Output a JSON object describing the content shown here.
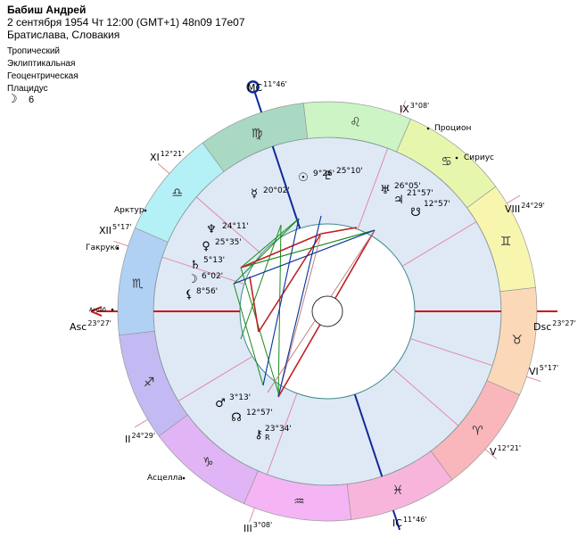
{
  "header": {
    "name": "Бабиш Андрей",
    "details": "2 сентября 1954  Чт  12:00 (GMT+1) 48n09  17e07",
    "place": "Братислава, Словакия"
  },
  "settings": {
    "lines": [
      "Тропический",
      "Эклиптикальная",
      "Геоцентрическая",
      "Плацидус"
    ],
    "moon": {
      "glyph": "☽",
      "value": 6
    }
  },
  "houses": [
    {
      "label": "Asc",
      "degree": "23°27'"
    },
    {
      "label": "II",
      "degree": "24°29'"
    },
    {
      "label": "III",
      "degree": "3°08'"
    },
    {
      "label": "IC",
      "degree": "11°46'"
    },
    {
      "label": "V",
      "degree": "12°21'"
    },
    {
      "label": "VI",
      "degree": "5°17'"
    },
    {
      "label": "Dsc",
      "degree": "23°27'"
    },
    {
      "label": "VIII",
      "degree": "24°29'"
    },
    {
      "label": "IX",
      "degree": "3°08'"
    },
    {
      "label": "MC",
      "degree": "11°46'"
    },
    {
      "label": "XI",
      "degree": "12°21'"
    },
    {
      "label": "XII",
      "degree": "5°17'"
    }
  ],
  "signs": [
    "♈",
    "♉",
    "♊",
    "♋",
    "♌",
    "♍",
    "♎",
    "♏",
    "♐",
    "♑",
    "♒",
    "♓"
  ],
  "planets": [
    {
      "glyph": "☉",
      "position": "9°26'"
    },
    {
      "glyph": "♇",
      "position": "25°10'"
    },
    {
      "glyph": "☿",
      "position": "20°02'"
    },
    {
      "glyph": "♅",
      "position": "26°05'"
    },
    {
      "glyph": "♃",
      "position": "21°57'"
    },
    {
      "glyph": "☋",
      "position": "12°57'"
    },
    {
      "glyph": "♆",
      "position": "24°11'"
    },
    {
      "glyph": "♀",
      "position": "25°35'"
    },
    {
      "glyph": "♄",
      "position": "5°13'"
    },
    {
      "glyph": "☽",
      "position": "6°02'"
    },
    {
      "glyph": "⚸",
      "position": "8°56'"
    },
    {
      "glyph": "♂",
      "position": "3°13'"
    },
    {
      "glyph": "☊",
      "position": "12°57'"
    },
    {
      "glyph": "⚷",
      "position": "23°34'",
      "retro": "R"
    }
  ],
  "stars": [
    "Процион",
    "Сириус",
    "Арктур",
    "Гакрукс",
    "Асцелла",
    "Акраб"
  ]
}
